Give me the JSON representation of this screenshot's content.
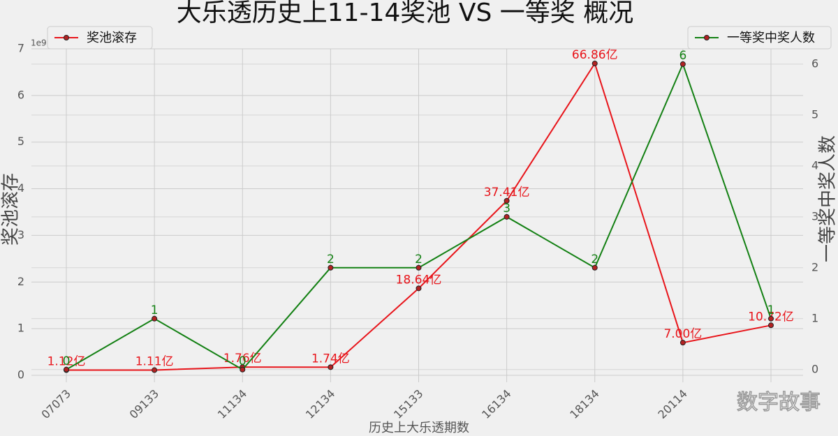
{
  "chart_data": {
    "type": "line",
    "title": "大乐透历史上11-14奖池 VS 一等奖 概况",
    "xlabel": "历史上大乐透期数",
    "ylabel": "奖池滚存",
    "y2label": "一等奖中奖人数",
    "y_offset_label": "1e9",
    "watermark": "数字故事",
    "categories": [
      "07073",
      "09133",
      "11134",
      "12134",
      "15133",
      "16134",
      "18134",
      "20114",
      null
    ],
    "series": [
      {
        "name": "奖池滚存",
        "color": "#e8141a",
        "legend": "upper left",
        "values": [
          0.112,
          0.111,
          0.176,
          0.174,
          1.864,
          3.741,
          6.686,
          0.7,
          1.072
        ],
        "value_labels": [
          "1.12亿",
          "1.11亿",
          "1.76亿",
          "1.74亿",
          "18.64亿",
          "37.41亿",
          "66.86亿",
          "7.00亿",
          "10.72亿"
        ]
      },
      {
        "name": "一等奖中奖人数",
        "color": "#138013",
        "axis": "y2",
        "legend": "upper right",
        "values": [
          0,
          1,
          0,
          2,
          2,
          3,
          2,
          6,
          1
        ]
      }
    ],
    "ylim": [
      -0.15,
      7
    ],
    "yticks": [
      0,
      1,
      2,
      3,
      4,
      5,
      6,
      7
    ],
    "y2lim": [
      -0.25,
      6.3
    ],
    "y2ticks": [
      0,
      1,
      2,
      3,
      4,
      5,
      6
    ],
    "grid": true
  }
}
